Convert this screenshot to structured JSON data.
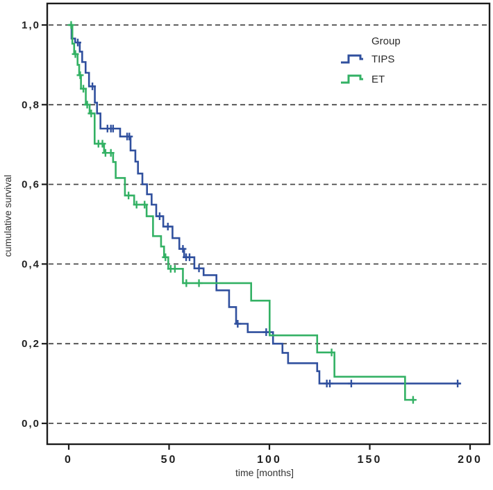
{
  "chart_data": {
    "type": "line",
    "subtype": "kaplan-meier-step",
    "title": "",
    "xlabel": "time [months]",
    "ylabel": "cumulative survival",
    "xlim": [
      0,
      210
    ],
    "ylim": [
      0.0,
      1.0
    ],
    "grid": "horizontal-dashed-at-every-y-tick",
    "x_ticks": [
      {
        "v": 0,
        "label": "0"
      },
      {
        "v": 50,
        "label": "50"
      },
      {
        "v": 100,
        "label": "100"
      },
      {
        "v": 150,
        "label": "150"
      },
      {
        "v": 200,
        "label": "200"
      }
    ],
    "y_ticks": [
      {
        "v": 1.0,
        "label": "1,0"
      },
      {
        "v": 0.8,
        "label": "0,8"
      },
      {
        "v": 0.6,
        "label": "0,6"
      },
      {
        "v": 0.4,
        "label": "0,4"
      },
      {
        "v": 0.2,
        "label": "0,2"
      },
      {
        "v": 0.0,
        "label": "0,0"
      }
    ],
    "legend": {
      "title": "Group",
      "position": "top-right-inside"
    },
    "colors": {
      "tips": "#30509e",
      "et": "#33b164",
      "gridline": "#4b4b4b",
      "frame": "#1c1c1c",
      "text": "#2b2b2b"
    },
    "series": [
      {
        "name": "TIPS",
        "color": "#30509e",
        "end_time": 195.2,
        "steps": [
          [
            0,
            1.0
          ],
          [
            1.4,
            0.966
          ],
          [
            3.2,
            0.956
          ],
          [
            5.5,
            0.933
          ],
          [
            6.7,
            0.907
          ],
          [
            8.4,
            0.88
          ],
          [
            10.1,
            0.846
          ],
          [
            13,
            0.805
          ],
          [
            14.1,
            0.778
          ],
          [
            15.8,
            0.74
          ],
          [
            25.6,
            0.72
          ],
          [
            30.8,
            0.685
          ],
          [
            33.2,
            0.657
          ],
          [
            34.5,
            0.627
          ],
          [
            36.7,
            0.6
          ],
          [
            39,
            0.575
          ],
          [
            41.3,
            0.549
          ],
          [
            43.6,
            0.52
          ],
          [
            47.1,
            0.494
          ],
          [
            51.7,
            0.465
          ],
          [
            55.1,
            0.438
          ],
          [
            57.5,
            0.417
          ],
          [
            62.6,
            0.389
          ],
          [
            67.2,
            0.372
          ],
          [
            73.6,
            0.334
          ],
          [
            79.9,
            0.292
          ],
          [
            83.4,
            0.25
          ],
          [
            89.2,
            0.229
          ],
          [
            101.8,
            0.2
          ],
          [
            106.5,
            0.177
          ],
          [
            109.3,
            0.151
          ],
          [
            123.8,
            0.131
          ],
          [
            124.9,
            0.1
          ]
        ],
        "censors": [
          [
            4.5,
            0.956
          ],
          [
            11.8,
            0.846
          ],
          [
            19.3,
            0.74
          ],
          [
            21.0,
            0.74
          ],
          [
            22.1,
            0.74
          ],
          [
            29.1,
            0.72
          ],
          [
            30.2,
            0.72
          ],
          [
            45.3,
            0.52
          ],
          [
            49.4,
            0.494
          ],
          [
            56.9,
            0.438
          ],
          [
            58.5,
            0.417
          ],
          [
            60.2,
            0.417
          ],
          [
            64.9,
            0.389
          ],
          [
            84.2,
            0.25
          ],
          [
            98.4,
            0.229
          ],
          [
            128.6,
            0.1
          ],
          [
            130.1,
            0.1
          ],
          [
            140.8,
            0.1
          ],
          [
            193.8,
            0.1
          ]
        ]
      },
      {
        "name": "ET",
        "color": "#33b164",
        "end_time": 172.5,
        "steps": [
          [
            0,
            1.0
          ],
          [
            1.8,
            0.953
          ],
          [
            2.7,
            0.927
          ],
          [
            4.4,
            0.9
          ],
          [
            5.2,
            0.874
          ],
          [
            6.1,
            0.84
          ],
          [
            8.5,
            0.8
          ],
          [
            10.4,
            0.778
          ],
          [
            12.9,
            0.702
          ],
          [
            17.6,
            0.679
          ],
          [
            22.1,
            0.656
          ],
          [
            23.4,
            0.616
          ],
          [
            28,
            0.572
          ],
          [
            32.6,
            0.549
          ],
          [
            38.8,
            0.52
          ],
          [
            42,
            0.47
          ],
          [
            46,
            0.444
          ],
          [
            47.5,
            0.417
          ],
          [
            49.6,
            0.388
          ],
          [
            56.9,
            0.352
          ],
          [
            90.9,
            0.308
          ],
          [
            100.1,
            0.221
          ],
          [
            123.8,
            0.178
          ],
          [
            132.4,
            0.117
          ],
          [
            167.6,
            0.059
          ]
        ],
        "censors": [
          [
            1.2,
            1.0
          ],
          [
            3.3,
            0.927
          ],
          [
            5.7,
            0.874
          ],
          [
            7.3,
            0.84
          ],
          [
            9.2,
            0.8
          ],
          [
            11.2,
            0.778
          ],
          [
            14.8,
            0.702
          ],
          [
            16.8,
            0.702
          ],
          [
            18.3,
            0.679
          ],
          [
            21.0,
            0.679
          ],
          [
            29.8,
            0.572
          ],
          [
            33.8,
            0.549
          ],
          [
            37.8,
            0.549
          ],
          [
            48.2,
            0.417
          ],
          [
            50.8,
            0.388
          ],
          [
            52.9,
            0.388
          ],
          [
            58.6,
            0.352
          ],
          [
            64.9,
            0.352
          ],
          [
            131.0,
            0.178
          ],
          [
            171.6,
            0.059
          ]
        ]
      }
    ]
  }
}
